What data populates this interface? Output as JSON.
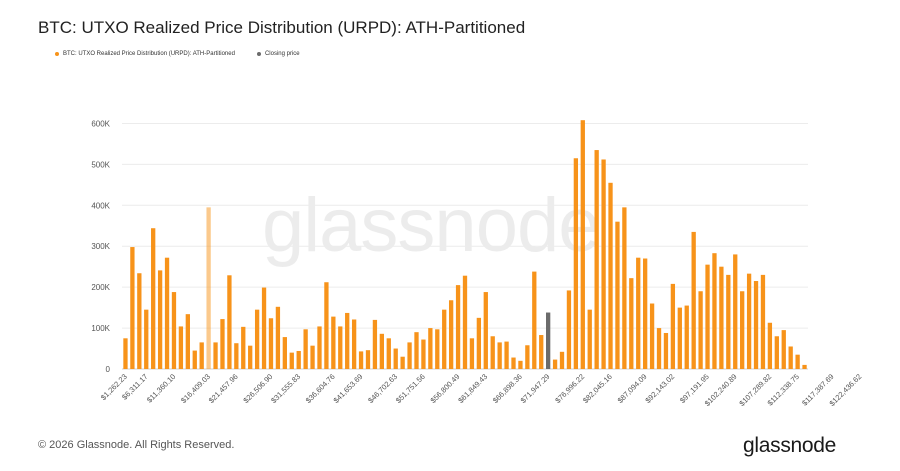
{
  "header": {
    "title": "BTC: UTXO Realized Price Distribution (URPD): ATH-Partitioned"
  },
  "legend": {
    "items": [
      {
        "label": "BTC: UTXO Realized Price Distribution (URPD): ATH-Partitioned",
        "color": "#f7931a"
      },
      {
        "label": "Closing price",
        "color": "#6b6b6b"
      }
    ]
  },
  "watermark": "glassnode",
  "footer": {
    "copyright": "© 2026 Glassnode. All Rights Reserved.",
    "brand": "glassnode"
  },
  "chart_data": {
    "type": "bar",
    "title": "BTC: UTXO Realized Price Distribution (URPD): ATH-Partitioned",
    "xlabel": "",
    "ylabel": "",
    "ylim": [
      0,
      650000
    ],
    "yticks": [
      0,
      100000,
      200000,
      300000,
      400000,
      500000,
      600000
    ],
    "ytick_labels": [
      "0",
      "100K",
      "200K",
      "300K",
      "400K",
      "500K",
      "600K"
    ],
    "bar_color": "#f7931a",
    "closing_price_color": "#6b6b6b",
    "closing_price_index": 61,
    "highlight_pale_index": 12,
    "xtick_labels": [
      {
        "index": 0,
        "label": "$1,262.23"
      },
      {
        "index": 3,
        "label": "$6,311.17"
      },
      {
        "index": 7,
        "label": "$11,360.10"
      },
      {
        "index": 12,
        "label": "$16,409.03"
      },
      {
        "index": 16,
        "label": "$21,457.96"
      },
      {
        "index": 21,
        "label": "$26,506.90"
      },
      {
        "index": 25,
        "label": "$31,555.83"
      },
      {
        "index": 30,
        "label": "$36,604.76"
      },
      {
        "index": 34,
        "label": "$41,653.69"
      },
      {
        "index": 39,
        "label": "$46,702.63"
      },
      {
        "index": 43,
        "label": "$51,751.56"
      },
      {
        "index": 48,
        "label": "$56,800.49"
      },
      {
        "index": 52,
        "label": "$61,849.43"
      },
      {
        "index": 57,
        "label": "$66,898.36"
      },
      {
        "index": 61,
        "label": "$71,947.29"
      },
      {
        "index": 66,
        "label": "$76,996.22"
      },
      {
        "index": 70,
        "label": "$82,045.16"
      },
      {
        "index": 75,
        "label": "$87,094.09"
      },
      {
        "index": 79,
        "label": "$92,143.02"
      },
      {
        "index": 84,
        "label": "$97,191.95"
      },
      {
        "index": 88,
        "label": "$102,240.89"
      },
      {
        "index": 93,
        "label": "$107,289.82"
      },
      {
        "index": 97,
        "label": "$112,338.75"
      },
      {
        "index": 102,
        "label": "$117,387.69"
      },
      {
        "index": 106,
        "label": "$122,436.62"
      }
    ],
    "values": [
      75000,
      298000,
      234000,
      145000,
      344000,
      241000,
      272000,
      188000,
      104000,
      134000,
      45000,
      65000,
      395000,
      65000,
      122000,
      229000,
      63000,
      103000,
      57000,
      145000,
      199000,
      124000,
      152000,
      78000,
      40000,
      44000,
      97000,
      57000,
      104000,
      212000,
      128000,
      104000,
      137000,
      121000,
      43000,
      46000,
      120000,
      86000,
      75000,
      50000,
      30000,
      65000,
      90000,
      72000,
      100000,
      97000,
      145000,
      168000,
      205000,
      228000,
      75000,
      125000,
      188000,
      80000,
      65000,
      67000,
      28000,
      20000,
      58000,
      238000,
      83000,
      138000,
      23000,
      42000,
      192000,
      515000,
      608000,
      145000,
      535000,
      512000,
      455000,
      360000,
      395000,
      222000,
      272000,
      270000,
      160000,
      100000,
      88000,
      208000,
      150000,
      155000,
      335000,
      190000,
      255000,
      283000,
      250000,
      230000,
      280000,
      190000,
      233000,
      215000,
      230000,
      113000,
      80000,
      95000,
      55000,
      35000,
      10000
    ]
  }
}
